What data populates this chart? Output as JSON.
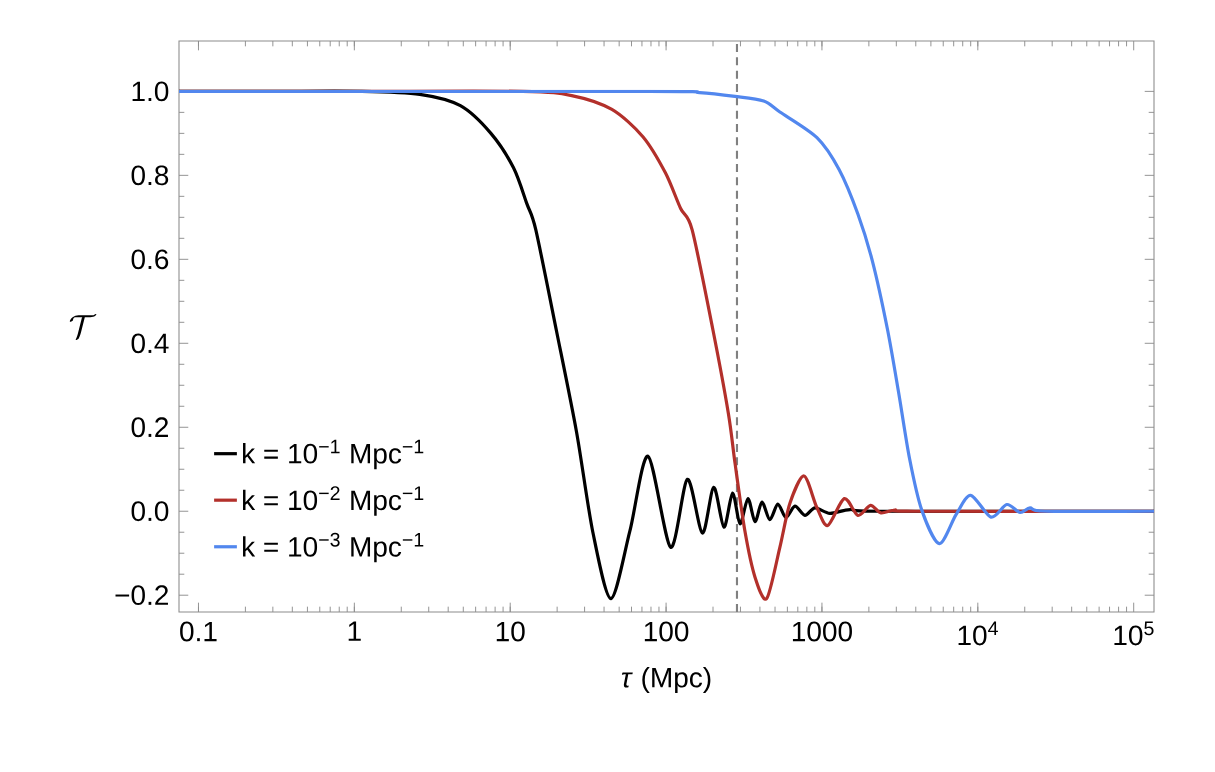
{
  "chart_data": {
    "type": "line",
    "xlabel": "*τ* (Mpc)",
    "ylabel": "\\mathcal{T}",
    "log": "x",
    "xlim": [
      0.075,
      135000
    ],
    "ylim": [
      -0.24,
      1.12
    ],
    "xticks": [
      0.1,
      1,
      10,
      100,
      1000,
      {
        "value": 10000,
        "label": "10$^{4}$"
      },
      {
        "value": 100000,
        "label": "10$^{5}$"
      }
    ],
    "yticks": [
      {
        "value": -0.2,
        "label": "−0.2"
      },
      {
        "value": 0,
        "label": "0.0"
      },
      {
        "value": 0.2,
        "label": "0.2"
      },
      {
        "value": 0.4,
        "label": "0.4"
      },
      {
        "value": 0.6,
        "label": "0.6"
      },
      {
        "value": 0.8,
        "label": "0.8"
      },
      {
        "value": 1,
        "label": "1.0"
      }
    ],
    "legend": "bottom left",
    "marker": "none",
    "line_style": "solid",
    "ref_lines": [
      {
        "axis": "x",
        "value": 285,
        "color": "#808080",
        "line_style": "dashed"
      }
    ],
    "series": [
      {
        "name": "k = 10$^{−1}$ Mpc$^{−1}$",
        "color": "#000000",
        "x": [
          0.075,
          0.3,
          1.12,
          2.63,
          4.79,
          7.52,
          10.5,
          12.8,
          14.6,
          19.8,
          26.6,
          33.9,
          44.3,
          58.6,
          76.6,
          107,
          137,
          171,
          202,
          235,
          267,
          298,
          335,
          372,
          412,
          463,
          521,
          587,
          671,
          778,
          902,
          1125,
          1514,
          2360,
          100000,
          135000
        ],
        "values": [
          1.0,
          1.0,
          1.0,
          0.993,
          0.966,
          0.9,
          0.818,
          0.732,
          0.67,
          0.43,
          0.19,
          -0.05,
          -0.208,
          -0.047,
          0.131,
          -0.086,
          0.076,
          -0.052,
          0.057,
          -0.038,
          0.043,
          -0.03,
          0.03,
          -0.025,
          0.022,
          -0.02,
          0.017,
          -0.015,
          0.012,
          -0.01,
          0.008,
          -0.005,
          0.004,
          0,
          0,
          0
        ]
      },
      {
        "name": "k = 10$^{−2}$ Mpc$^{−1}$",
        "color": "#b3302b",
        "x": [
          0.075,
          1,
          12,
          24.8,
          44.9,
          71,
          99,
          124,
          147,
          200,
          251,
          277,
          320,
          372,
          442,
          537,
          623,
          767,
          925,
          1089,
          1390,
          1702,
          2048,
          2390,
          2940,
          3960,
          135000
        ],
        "values": [
          1.0,
          1.0,
          1.0,
          0.99,
          0.957,
          0.892,
          0.806,
          0.721,
          0.67,
          0.431,
          0.233,
          0.114,
          -0.046,
          -0.157,
          -0.208,
          -0.086,
          0.019,
          0.084,
          0.01,
          -0.034,
          0.03,
          -0.01,
          0.014,
          -0.004,
          0.003,
          0,
          0
        ]
      },
      {
        "name": "k = 10$^{−3}$ Mpc$^{−1}$",
        "color": "#5287ee",
        "x": [
          0.075,
          78.5,
          164,
          277,
          423,
          537,
          929,
          1288,
          1700,
          2113,
          2630,
          3100,
          3650,
          4375,
          5660,
          7250,
          9000,
          12150,
          15350,
          18670,
          21630,
          27000,
          135000
        ],
        "values": [
          1.0,
          1.0,
          0.997,
          0.988,
          0.977,
          0.951,
          0.89,
          0.814,
          0.708,
          0.594,
          0.434,
          0.284,
          0.125,
          0.002,
          -0.077,
          -0.008,
          0.038,
          -0.014,
          0.016,
          -0.003,
          0.008,
          0,
          0
        ]
      }
    ]
  }
}
